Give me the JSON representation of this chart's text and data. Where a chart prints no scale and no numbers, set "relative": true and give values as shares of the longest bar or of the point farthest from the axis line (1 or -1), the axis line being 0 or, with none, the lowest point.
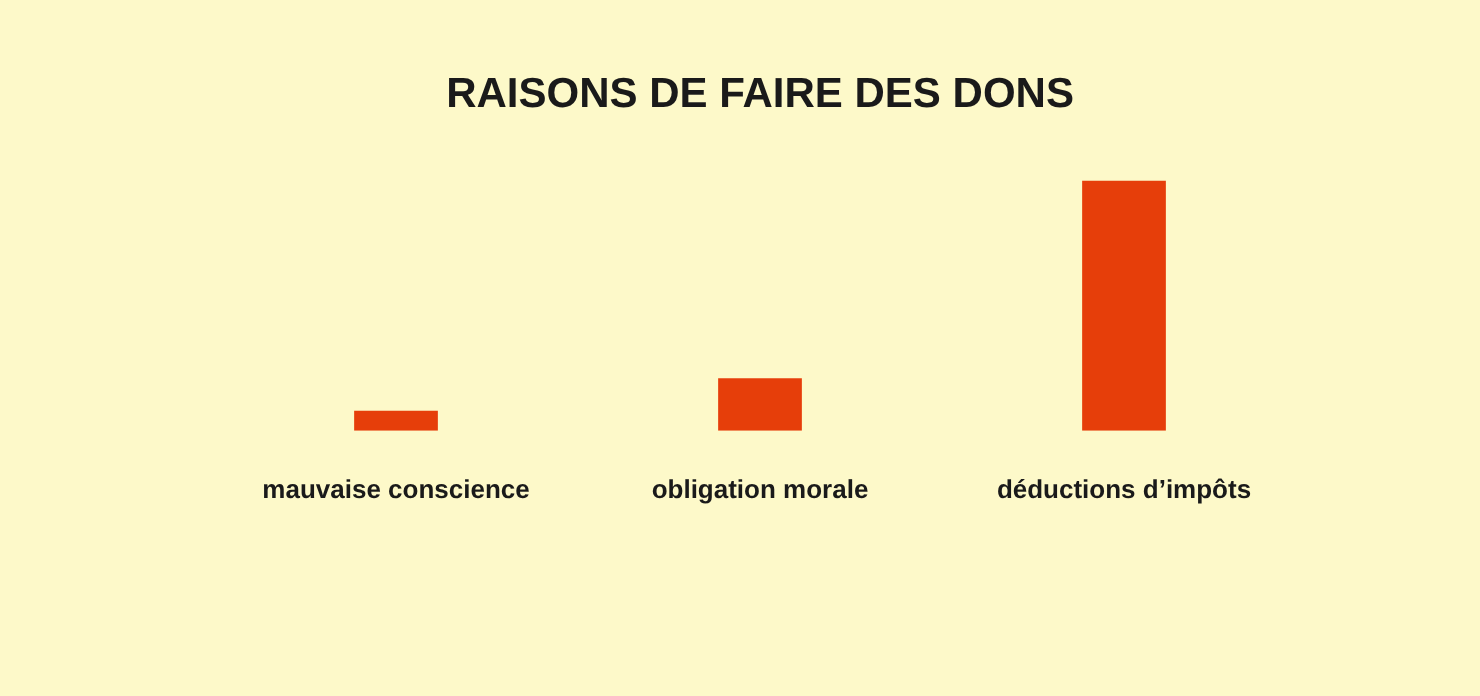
{
  "chart_data": {
    "type": "bar",
    "title": "RAISONS DE FAIRE DES DONS",
    "categories": [
      "mauvaise conscience",
      "obligation morale",
      "déductions d’impôts"
    ],
    "values": [
      0.08,
      0.21,
      1
    ],
    "color": "#e63e0a",
    "relative": true,
    "grid": false,
    "legend": false
  }
}
